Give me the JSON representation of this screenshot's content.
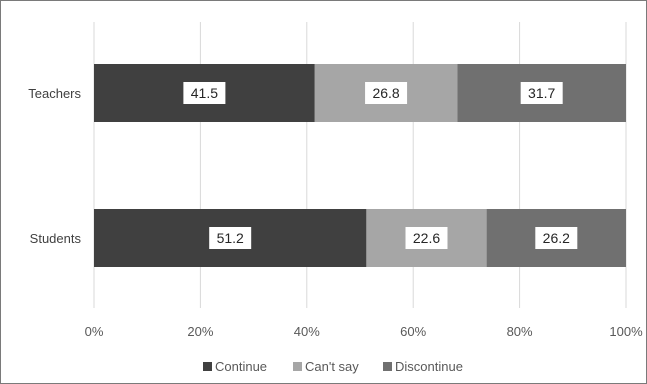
{
  "chart_data": {
    "type": "bar",
    "orientation": "horizontal",
    "stacked": true,
    "percent_stacked": true,
    "categories": [
      "Teachers",
      "Students"
    ],
    "series": [
      {
        "name": "Continue",
        "values": [
          41.5,
          51.2
        ],
        "color": "#404040"
      },
      {
        "name": "Can't say",
        "values": [
          26.8,
          22.6
        ],
        "color": "#a6a6a6"
      },
      {
        "name": "Discontinue",
        "values": [
          31.7,
          26.2
        ],
        "color": "#707070"
      }
    ],
    "x_ticks": [
      "0%",
      "20%",
      "40%",
      "60%",
      "80%",
      "100%"
    ],
    "xlim": [
      0,
      100
    ],
    "grid": true,
    "legend_position": "bottom",
    "data_labels": true
  }
}
